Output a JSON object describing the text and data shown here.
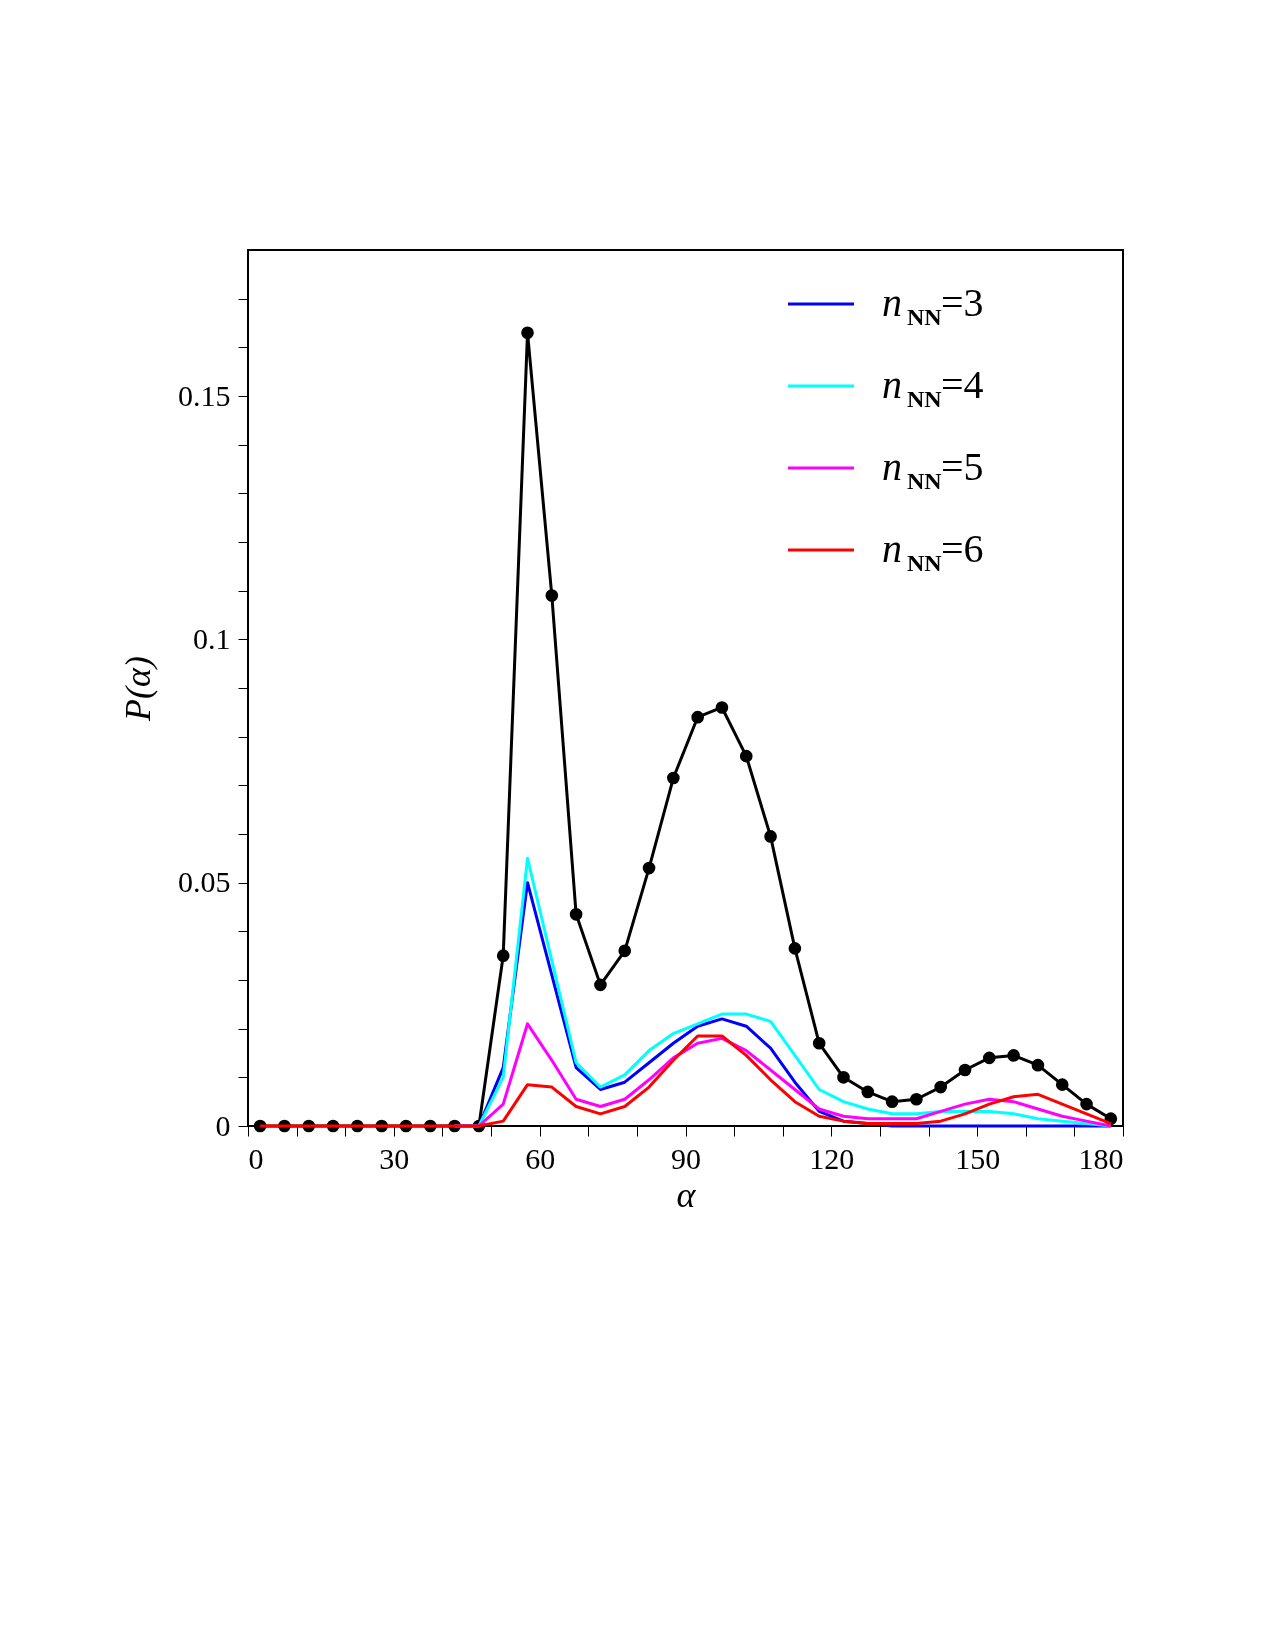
{
  "chart_data": {
    "type": "line",
    "xlabel": "α",
    "ylabel": "P(α)",
    "x": [
      2.5,
      7.5,
      12.5,
      17.5,
      22.5,
      27.5,
      32.5,
      37.5,
      42.5,
      47.5,
      52.5,
      57.5,
      62.5,
      67.5,
      72.5,
      77.5,
      82.5,
      87.5,
      92.5,
      97.5,
      102.5,
      107.5,
      112.5,
      117.5,
      122.5,
      127.5,
      132.5,
      137.5,
      142.5,
      147.5,
      152.5,
      157.5,
      162.5,
      167.5,
      172.5,
      177.5
    ],
    "series": [
      {
        "color": "#000000",
        "marker": "circle",
        "values": [
          0,
          0,
          0,
          0,
          0,
          0,
          0,
          0,
          0,
          0,
          0.035,
          0.163,
          0.109,
          0.0435,
          0.029,
          0.036,
          0.053,
          0.0715,
          0.084,
          0.086,
          0.076,
          0.0595,
          0.0365,
          0.017,
          0.01,
          0.007,
          0.005,
          0.0055,
          0.008,
          0.0115,
          0.014,
          0.0145,
          0.0125,
          0.0085,
          0.0045,
          0.0015
        ]
      },
      {
        "name": "n$_{NN}$=3",
        "color": "#0000ff",
        "values": [
          null,
          null,
          null,
          null,
          null,
          null,
          null,
          null,
          0,
          0,
          0.012,
          0.05,
          0.031,
          0.012,
          0.0075,
          0.009,
          0.013,
          0.017,
          0.0205,
          0.022,
          0.0205,
          0.016,
          0.009,
          0.003,
          0.001,
          0.0005,
          0,
          0,
          0,
          0,
          0,
          0,
          0,
          0,
          0,
          0
        ]
      },
      {
        "name": "n$_{NN}$=4",
        "color": "#00ffff",
        "values": [
          null,
          null,
          null,
          null,
          null,
          null,
          null,
          null,
          0,
          0,
          0.01,
          0.055,
          0.034,
          0.013,
          0.008,
          0.0105,
          0.0155,
          0.019,
          0.021,
          0.023,
          0.023,
          0.0215,
          0.0145,
          0.0075,
          0.005,
          0.0035,
          0.0025,
          0.0025,
          0.003,
          0.003,
          0.003,
          0.0025,
          0.0015,
          0.001,
          0.0005,
          0
        ]
      },
      {
        "name": "n$_{NN}$=5",
        "color": "#ff00ff",
        "values": [
          null,
          null,
          null,
          null,
          null,
          null,
          null,
          null,
          0,
          0,
          0.0045,
          0.021,
          0.0135,
          0.0055,
          0.004,
          0.0055,
          0.0095,
          0.014,
          0.017,
          0.018,
          0.0155,
          0.0115,
          0.0075,
          0.0035,
          0.002,
          0.0015,
          0.0015,
          0.0015,
          0.003,
          0.0045,
          0.0055,
          0.005,
          0.0035,
          0.002,
          0.001,
          0
        ]
      },
      {
        "name": "n$_{NN}$=6",
        "color": "#ff0000",
        "values": [
          0,
          0,
          0,
          0,
          0,
          0,
          0,
          0,
          0,
          0,
          0.001,
          0.0085,
          0.008,
          0.004,
          0.0025,
          0.004,
          0.008,
          0.0135,
          0.0185,
          0.0185,
          0.0145,
          0.0095,
          0.005,
          0.002,
          0.001,
          0.0005,
          0.0005,
          0.0005,
          0.001,
          0.0025,
          0.0045,
          0.006,
          0.0065,
          0.0045,
          0.0025,
          0.0005
        ]
      }
    ],
    "xlim": [
      0,
      180
    ],
    "xticks": [
      0,
      {
        "value": 10,
        "label": null
      },
      {
        "value": 20,
        "label": null
      },
      30,
      {
        "value": 40,
        "label": null
      },
      {
        "value": 50,
        "label": null
      },
      60,
      {
        "value": 70,
        "label": null
      },
      {
        "value": 80,
        "label": null
      },
      90,
      {
        "value": 100,
        "label": null
      },
      {
        "value": 110,
        "label": null
      },
      120,
      {
        "value": 130,
        "label": null
      },
      {
        "value": 140,
        "label": null
      },
      150,
      {
        "value": 160,
        "label": null
      },
      {
        "value": 170,
        "label": null
      },
      180
    ],
    "ylim": [
      0,
      0.18
    ],
    "yticks": [
      0,
      {
        "value": 0.01,
        "label": null
      },
      {
        "value": 0.02,
        "label": null
      },
      {
        "value": 0.03,
        "label": null
      },
      {
        "value": 0.04,
        "label": null
      },
      0.05,
      {
        "value": 0.06,
        "label": null
      },
      {
        "value": 0.07,
        "label": null
      },
      {
        "value": 0.08,
        "label": null
      },
      {
        "value": 0.09,
        "label": null
      },
      0.1,
      {
        "value": 0.11,
        "label": null
      },
      {
        "value": 0.12,
        "label": null
      },
      {
        "value": 0.13,
        "label": null
      },
      {
        "value": 0.14,
        "label": null
      },
      0.15,
      {
        "value": 0.16,
        "label": null
      },
      {
        "value": 0.17,
        "label": null
      }
    ],
    "legend": "top right",
    "grid": false
  }
}
